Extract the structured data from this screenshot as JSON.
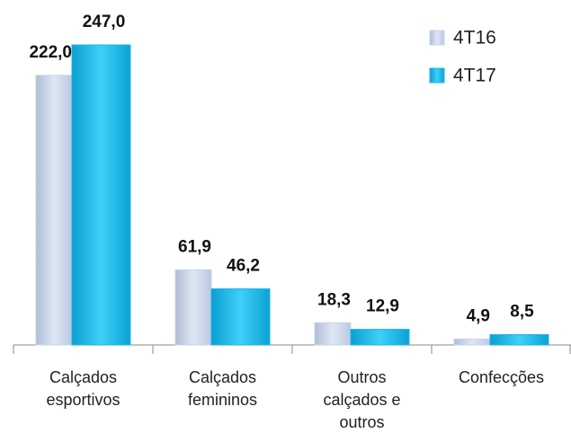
{
  "chart_data": {
    "type": "bar",
    "categories": [
      "Calçados esportivos",
      "Calçados femininos",
      "Outros calçados e outros",
      "Confecções"
    ],
    "series": [
      {
        "name": "4T16",
        "color": "#c6d4ea",
        "values": [
          222.0,
          61.9,
          18.3,
          4.9
        ],
        "value_labels": [
          "222,0",
          "61,9",
          "18,3",
          "4,9"
        ]
      },
      {
        "name": "4T17",
        "color": "#1cb6e6",
        "values": [
          247.0,
          46.2,
          12.9,
          8.5
        ],
        "value_labels": [
          "247,0",
          "46,2",
          "12,9",
          "8,5"
        ]
      }
    ],
    "legend": "upper right"
  }
}
